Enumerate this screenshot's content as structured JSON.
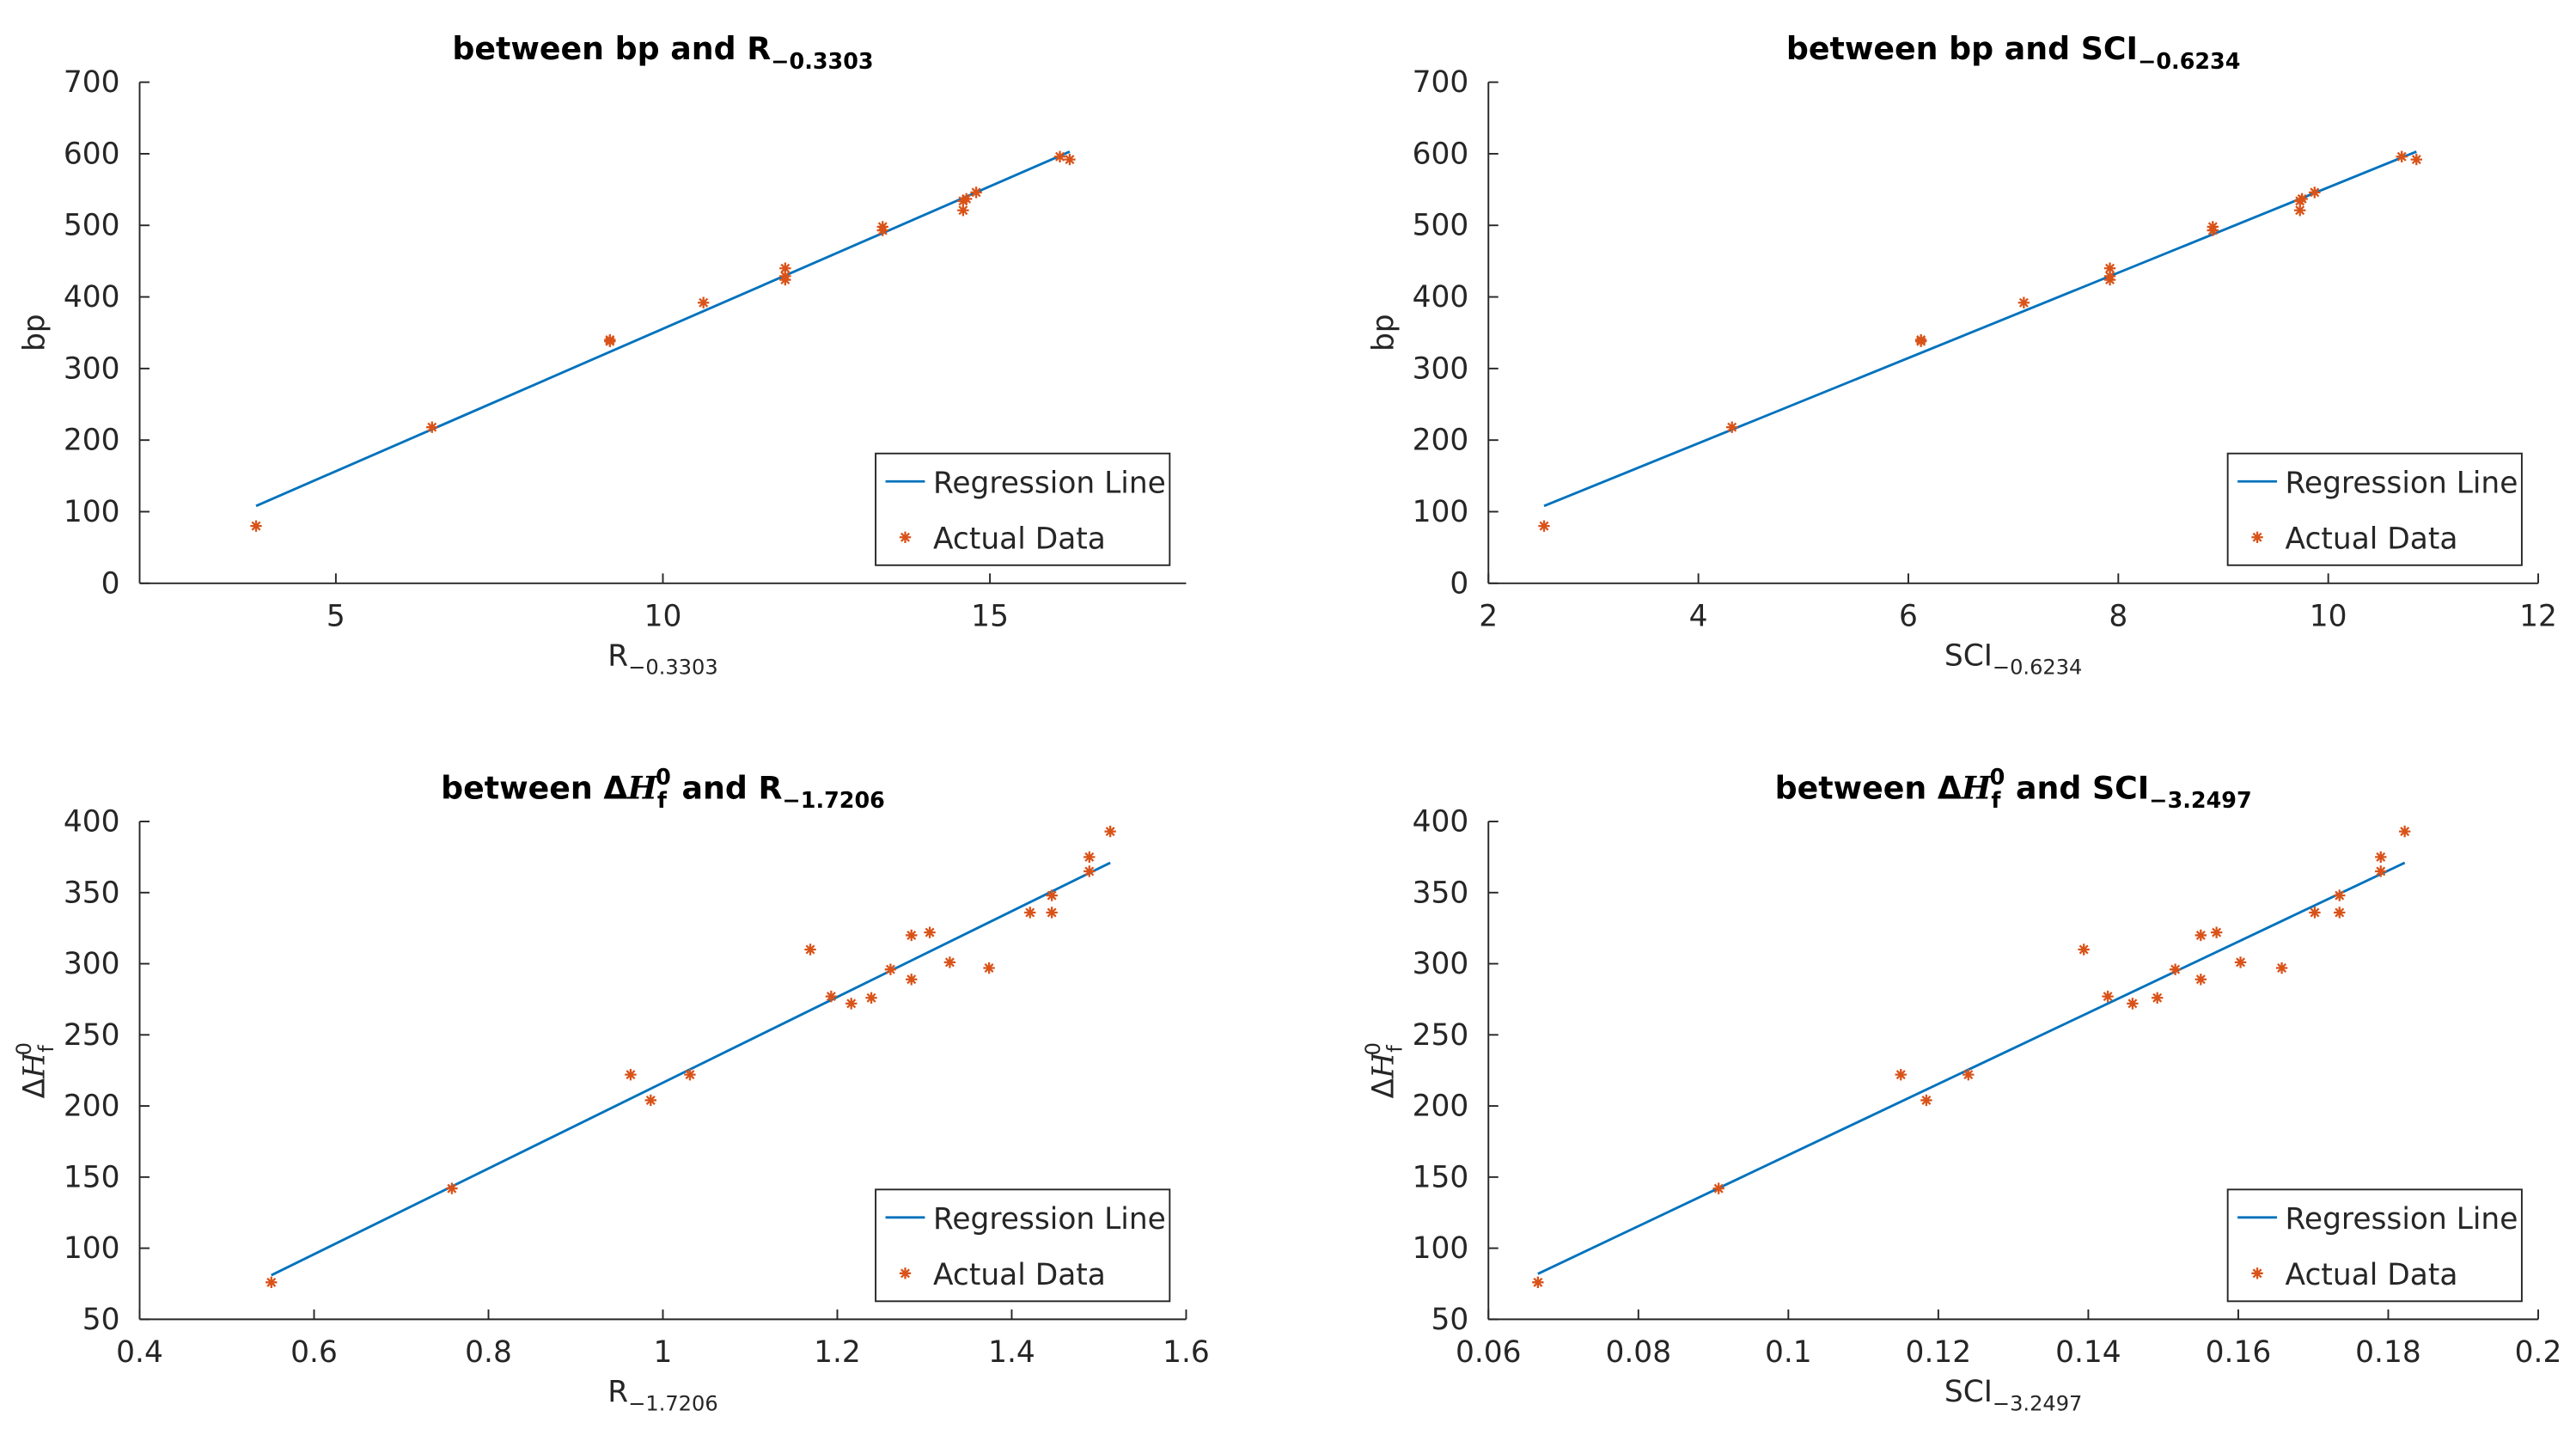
{
  "chart_data": [
    {
      "type": "scatter",
      "title": [
        {
          "text": "between bp and R",
          "style": ""
        },
        {
          "text": "−0.3303",
          "style": "sub"
        }
      ],
      "xlabel": [
        {
          "text": "R",
          "style": ""
        },
        {
          "text": "−0.3303",
          "style": "sub"
        }
      ],
      "ylabel": [
        {
          "text": "bp",
          "style": ""
        }
      ],
      "xlim": [
        2,
        18
      ],
      "xticks": [
        5,
        10,
        15
      ],
      "ylim": [
        0,
        700
      ],
      "yticks": [
        0,
        100,
        200,
        300,
        400,
        500,
        600,
        700
      ],
      "legend": "lower right",
      "series": [
        {
          "name": "Regression Line",
          "color": "#0072bd",
          "kind": "line",
          "x": [
            3.78,
            16.22
          ],
          "values": [
            108,
            603
          ]
        },
        {
          "name": "Actual Data",
          "color": "#d95319",
          "kind": "marker",
          "x": [
            3.78,
            6.47,
            9.19,
            9.19,
            10.62,
            11.87,
            11.87,
            11.87,
            13.36,
            13.36,
            14.59,
            14.59,
            14.64,
            14.79,
            16.07,
            16.22
          ],
          "values": [
            80,
            218,
            340,
            338,
            392,
            440,
            429,
            424,
            498,
            493,
            534,
            521,
            537,
            546,
            596,
            592
          ]
        }
      ]
    },
    {
      "type": "scatter",
      "title": [
        {
          "text": "between bp and SCI",
          "style": ""
        },
        {
          "text": "−0.6234",
          "style": "sub"
        }
      ],
      "xlabel": [
        {
          "text": "SCI",
          "style": ""
        },
        {
          "text": "−0.6234",
          "style": "sub"
        }
      ],
      "ylabel": [
        {
          "text": "bp",
          "style": ""
        }
      ],
      "xlim": [
        2,
        12
      ],
      "xticks": [
        2,
        4,
        6,
        8,
        10,
        12
      ],
      "ylim": [
        0,
        700
      ],
      "yticks": [
        0,
        100,
        200,
        300,
        400,
        500,
        600,
        700
      ],
      "legend": "lower right",
      "series": [
        {
          "name": "Regression Line",
          "color": "#0072bd",
          "kind": "line",
          "x": [
            2.53,
            10.84
          ],
          "values": [
            108,
            603
          ]
        },
        {
          "name": "Actual Data",
          "color": "#d95319",
          "kind": "marker",
          "x": [
            2.53,
            4.32,
            6.12,
            6.12,
            7.1,
            7.92,
            7.92,
            7.92,
            8.9,
            8.9,
            9.73,
            9.73,
            9.75,
            9.87,
            10.7,
            10.84
          ],
          "values": [
            80,
            218,
            340,
            338,
            392,
            440,
            429,
            424,
            498,
            493,
            534,
            521,
            537,
            546,
            596,
            592
          ]
        }
      ]
    },
    {
      "type": "scatter",
      "title": [
        {
          "text": "between Δ",
          "style": ""
        },
        {
          "text": "H",
          "style": "italic"
        },
        {
          "text": "f",
          "style": "sub"
        },
        {
          "text": "0",
          "style": "sup"
        },
        {
          "text": " and R",
          "style": ""
        },
        {
          "text": "−1.7206",
          "style": "sub"
        }
      ],
      "xlabel": [
        {
          "text": "R",
          "style": ""
        },
        {
          "text": "−1.7206",
          "style": "sub"
        }
      ],
      "ylabel": [
        {
          "text": "Δ",
          "style": ""
        },
        {
          "text": "H",
          "style": "italic"
        },
        {
          "text": "f",
          "style": "sub"
        },
        {
          "text": "0",
          "style": "sup"
        }
      ],
      "xlim": [
        0.4,
        1.6
      ],
      "xticks": [
        0.4,
        0.6,
        0.8,
        1,
        1.2,
        1.4,
        1.6
      ],
      "ylim": [
        50,
        400
      ],
      "yticks": [
        50,
        100,
        150,
        200,
        250,
        300,
        350,
        400
      ],
      "legend": "lower right",
      "series": [
        {
          "name": "Regression Line",
          "color": "#0072bd",
          "kind": "line",
          "x": [
            0.551,
            1.513
          ],
          "values": [
            81,
            371
          ]
        },
        {
          "name": "Actual Data",
          "color": "#d95319",
          "kind": "marker",
          "x": [
            0.551,
            0.758,
            0.963,
            0.986,
            1.031,
            1.169,
            1.193,
            1.216,
            1.239,
            1.261,
            1.285,
            1.285,
            1.306,
            1.329,
            1.374,
            1.421,
            1.446,
            1.446,
            1.489,
            1.489,
            1.513
          ],
          "values": [
            76,
            142,
            222,
            204,
            222,
            310,
            277,
            272,
            276,
            296,
            320,
            289,
            322,
            301,
            297,
            336,
            336,
            348,
            375,
            365,
            393
          ]
        }
      ]
    },
    {
      "type": "scatter",
      "title": [
        {
          "text": "between Δ",
          "style": ""
        },
        {
          "text": "H",
          "style": "italic"
        },
        {
          "text": "f",
          "style": "sub"
        },
        {
          "text": "0",
          "style": "sup"
        },
        {
          "text": " and SCI",
          "style": ""
        },
        {
          "text": "−3.2497",
          "style": "sub"
        }
      ],
      "xlabel": [
        {
          "text": "SCI",
          "style": ""
        },
        {
          "text": "−3.2497",
          "style": "sub"
        }
      ],
      "ylabel": [
        {
          "text": "Δ",
          "style": ""
        },
        {
          "text": "H",
          "style": "italic"
        },
        {
          "text": "f",
          "style": "sub"
        },
        {
          "text": "0",
          "style": "sup"
        }
      ],
      "xlim": [
        0.06,
        0.2
      ],
      "xticks": [
        0.06,
        0.08,
        0.1,
        0.12,
        0.14,
        0.16,
        0.18,
        0.2
      ],
      "ylim": [
        50,
        400
      ],
      "yticks": [
        50,
        100,
        150,
        200,
        250,
        300,
        350,
        400
      ],
      "legend": "lower right",
      "series": [
        {
          "name": "Regression Line",
          "color": "#0072bd",
          "kind": "line",
          "x": [
            0.0666,
            0.1822
          ],
          "values": [
            82,
            371
          ]
        },
        {
          "name": "Actual Data",
          "color": "#d95319",
          "kind": "marker",
          "x": [
            0.0666,
            0.0907,
            0.115,
            0.1184,
            0.124,
            0.1394,
            0.1426,
            0.1459,
            0.1492,
            0.1516,
            0.155,
            0.155,
            0.1571,
            0.1603,
            0.1658,
            0.1702,
            0.1735,
            0.1735,
            0.179,
            0.179,
            0.1822
          ],
          "values": [
            76,
            142,
            222,
            204,
            222,
            310,
            277,
            272,
            276,
            296,
            320,
            289,
            322,
            301,
            297,
            336,
            336,
            348,
            375,
            365,
            393
          ]
        }
      ]
    }
  ]
}
